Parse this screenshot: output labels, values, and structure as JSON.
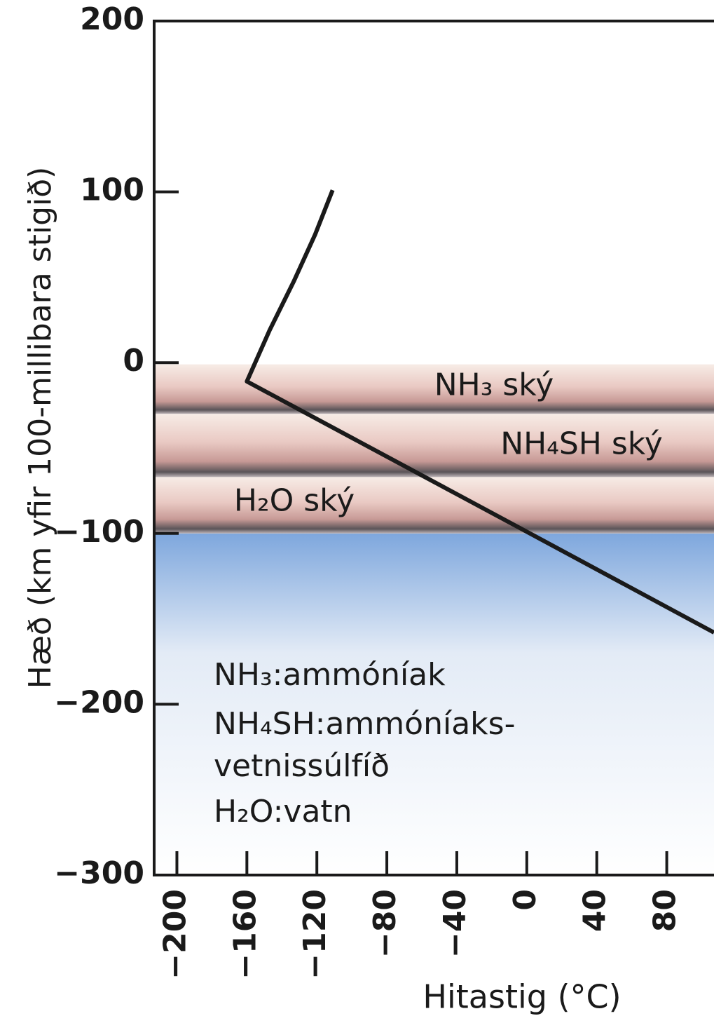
{
  "chart_data": {
    "type": "line",
    "x_label": "Hitastig (°C)",
    "y_label": "Hæð (km yfir 100-millibara stigið)",
    "xlim": [
      -213,
      107
    ],
    "ylim": [
      -300,
      200
    ],
    "xticks": [
      {
        "value": -200,
        "label": "−200"
      },
      {
        "value": -160,
        "label": "−160"
      },
      {
        "value": -120,
        "label": "−120"
      },
      {
        "value": -80,
        "label": "−80"
      },
      {
        "value": -40,
        "label": "−40"
      },
      0,
      40,
      80
    ],
    "yticks": [
      200,
      100,
      0,
      {
        "value": -100,
        "label": "−100"
      },
      {
        "value": -200,
        "label": "−200"
      },
      {
        "value": -300,
        "label": "−300"
      }
    ],
    "series": [
      {
        "color": "#1a1a1a",
        "x": [
          -111,
          -121,
          -133,
          -147,
          -160,
          -40,
          0,
          107
        ],
        "values": [
          101,
          75,
          48,
          19,
          -11,
          -77,
          -99,
          -158
        ]
      }
    ],
    "layers": [
      {
        "label": "NH₃ ský",
        "top": -1,
        "bottom": -30
      },
      {
        "label": "NH₄SH ský",
        "top": -30,
        "bottom": -67
      },
      {
        "label": "H₂O ský",
        "top": -67,
        "bottom": -100
      }
    ],
    "legend_lines": [
      "NH₃:ammóníak",
      "NH₄SH:ammóníaks-",
      "vetnissúlfíð",
      "H₂O:vatn"
    ]
  }
}
